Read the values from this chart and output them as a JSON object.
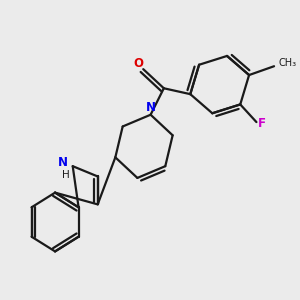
{
  "background_color": "#ebebeb",
  "bond_color": "#1a1a1a",
  "N_color": "#0000ee",
  "O_color": "#dd0000",
  "F_color": "#cc00cc",
  "bond_width": 1.6,
  "figsize": [
    3.0,
    3.0
  ],
  "dpi": 100,
  "xlim": [
    0,
    10
  ],
  "ylim": [
    0,
    10
  ]
}
